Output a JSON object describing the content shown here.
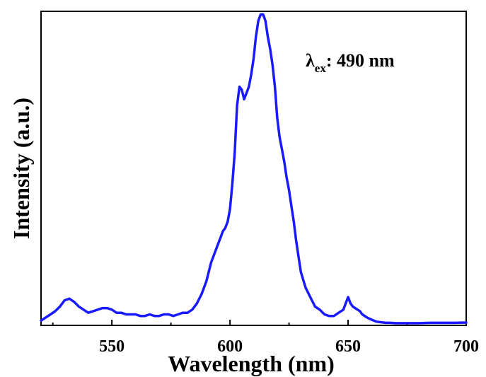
{
  "chart_data": {
    "type": "line",
    "title": "",
    "xlabel": "Wavelength (nm)",
    "ylabel": "Intensity (a.u.)",
    "xlim": [
      520,
      700
    ],
    "ylim": [
      0,
      1.0
    ],
    "xticks": [
      550,
      600,
      650,
      700
    ],
    "xtick_labels": [
      "550",
      "600",
      "650",
      "700"
    ],
    "yticks": [],
    "grid": false,
    "legend": "none",
    "annotation": {
      "symbol": "λ",
      "subscript": "ex",
      "text": ": 490 nm"
    },
    "series": [
      {
        "color": "#1a1aff",
        "x": [
          520,
          522,
          524,
          526,
          528,
          530,
          532,
          534,
          536,
          538,
          540,
          542,
          544,
          546,
          548,
          550,
          552,
          554,
          556,
          558,
          560,
          562,
          564,
          566,
          568,
          570,
          572,
          574,
          576,
          578,
          580,
          582,
          584,
          586,
          588,
          590,
          592,
          594,
          595,
          596,
          597,
          598,
          599,
          600,
          601,
          602,
          603,
          604,
          605,
          606,
          607,
          608,
          609,
          610,
          611,
          612,
          613,
          614,
          615,
          616,
          617,
          618,
          619,
          620,
          621,
          622,
          623,
          624,
          625,
          626,
          627,
          628,
          629,
          630,
          632,
          634,
          636,
          638,
          640,
          642,
          644,
          646,
          648,
          649,
          650,
          651,
          652,
          653,
          654,
          655,
          656,
          658,
          660,
          662,
          664,
          666,
          668,
          670,
          675,
          680,
          685,
          690,
          695,
          700
        ],
        "y": [
          0.015,
          0.025,
          0.035,
          0.045,
          0.06,
          0.08,
          0.085,
          0.075,
          0.06,
          0.05,
          0.04,
          0.045,
          0.05,
          0.055,
          0.055,
          0.05,
          0.04,
          0.04,
          0.035,
          0.035,
          0.035,
          0.03,
          0.03,
          0.035,
          0.03,
          0.03,
          0.035,
          0.035,
          0.03,
          0.035,
          0.04,
          0.04,
          0.05,
          0.07,
          0.1,
          0.14,
          0.2,
          0.24,
          0.26,
          0.28,
          0.3,
          0.31,
          0.33,
          0.37,
          0.45,
          0.55,
          0.7,
          0.76,
          0.75,
          0.72,
          0.74,
          0.76,
          0.8,
          0.85,
          0.92,
          0.97,
          0.99,
          0.99,
          0.97,
          0.92,
          0.88,
          0.83,
          0.76,
          0.66,
          0.6,
          0.56,
          0.52,
          0.47,
          0.43,
          0.38,
          0.33,
          0.27,
          0.22,
          0.17,
          0.12,
          0.09,
          0.06,
          0.05,
          0.035,
          0.03,
          0.03,
          0.04,
          0.05,
          0.07,
          0.09,
          0.07,
          0.06,
          0.055,
          0.05,
          0.045,
          0.035,
          0.025,
          0.018,
          0.012,
          0.01,
          0.008,
          0.008,
          0.007,
          0.007,
          0.007,
          0.008,
          0.008,
          0.008,
          0.009
        ]
      }
    ]
  }
}
